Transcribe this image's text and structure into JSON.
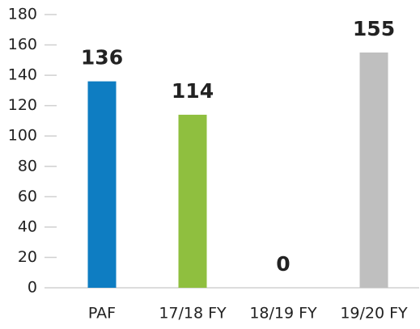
{
  "chart_data": {
    "type": "bar",
    "categories": [
      "PAF",
      "17/18 FY",
      "18/19 FY",
      "19/20 FY"
    ],
    "values": [
      136,
      114,
      0,
      155
    ],
    "colors": [
      "#0e7dc2",
      "#8fbf3f",
      null,
      "#bfbfbf"
    ],
    "ylim": [
      0,
      180
    ],
    "yticks": [
      0,
      20,
      40,
      60,
      80,
      100,
      120,
      140,
      160,
      180
    ],
    "data_labels": true
  }
}
